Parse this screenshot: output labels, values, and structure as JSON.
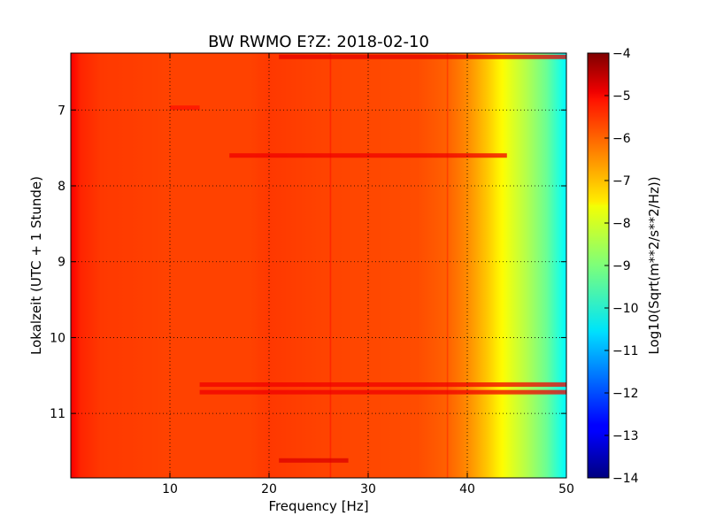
{
  "chart_data": {
    "type": "heatmap",
    "title": "BW RWMO E?Z: 2018-02-10",
    "xlabel": "Frequency [Hz]",
    "ylabel": "Lokalzeit (UTC + 1 Stunde)",
    "xlim": [
      0,
      50
    ],
    "ylim": [
      11.85,
      6.25
    ],
    "y_inverted": true,
    "x_ticks": [
      10,
      20,
      30,
      40,
      50
    ],
    "x_tick_labels": [
      "10",
      "20",
      "30",
      "40",
      "50"
    ],
    "y_ticks": [
      7,
      8,
      9,
      10,
      11
    ],
    "y_tick_labels": [
      "7",
      "8",
      "9",
      "10",
      "11"
    ],
    "grid": true,
    "colormap": "jet",
    "colorbar": {
      "label": "Log10(Sqrt(m**2/s**2/Hz))",
      "range": [
        -14,
        -4
      ],
      "ticks": [
        -4,
        -5,
        -6,
        -7,
        -8,
        -9,
        -10,
        -11,
        -12,
        -13,
        -14
      ],
      "tick_labels": [
        "−4",
        "−5",
        "−6",
        "−7",
        "−8",
        "−9",
        "−10",
        "−11",
        "−12",
        "−13",
        "−14"
      ]
    },
    "spectrum_profile": {
      "frequency_hz": [
        0,
        1,
        3,
        10,
        18,
        20,
        25,
        30,
        35,
        38,
        40,
        42,
        44,
        46,
        48,
        50
      ],
      "log10_amplitude": [
        -5.2,
        -5.6,
        -5.8,
        -5.9,
        -5.9,
        -5.8,
        -5.9,
        -5.95,
        -6.0,
        -6.2,
        -6.6,
        -7.2,
        -7.9,
        -8.5,
        -9.2,
        -10.3
      ]
    },
    "features": [
      {
        "type": "line",
        "frequency_hz": 26.2,
        "log10_amplitude": -5.4
      },
      {
        "type": "line",
        "frequency_hz": 38.0,
        "log10_amplitude": -5.6
      },
      {
        "type": "band",
        "time": 6.3,
        "f_min": 21,
        "f_max": 50,
        "log10_amplitude": -5.0
      },
      {
        "type": "band",
        "time": 6.97,
        "f_min": 10,
        "f_max": 13,
        "log10_amplitude": -5.4
      },
      {
        "type": "band",
        "time": 7.6,
        "f_min": 16,
        "f_max": 44,
        "log10_amplitude": -5.1
      },
      {
        "type": "band",
        "time": 10.62,
        "f_min": 13,
        "f_max": 50,
        "log10_amplitude": -5.1
      },
      {
        "type": "band",
        "time": 10.72,
        "f_min": 13,
        "f_max": 50,
        "log10_amplitude": -5.1
      },
      {
        "type": "band",
        "time": 11.62,
        "f_min": 21,
        "f_max": 28,
        "log10_amplitude": -4.9
      }
    ]
  }
}
